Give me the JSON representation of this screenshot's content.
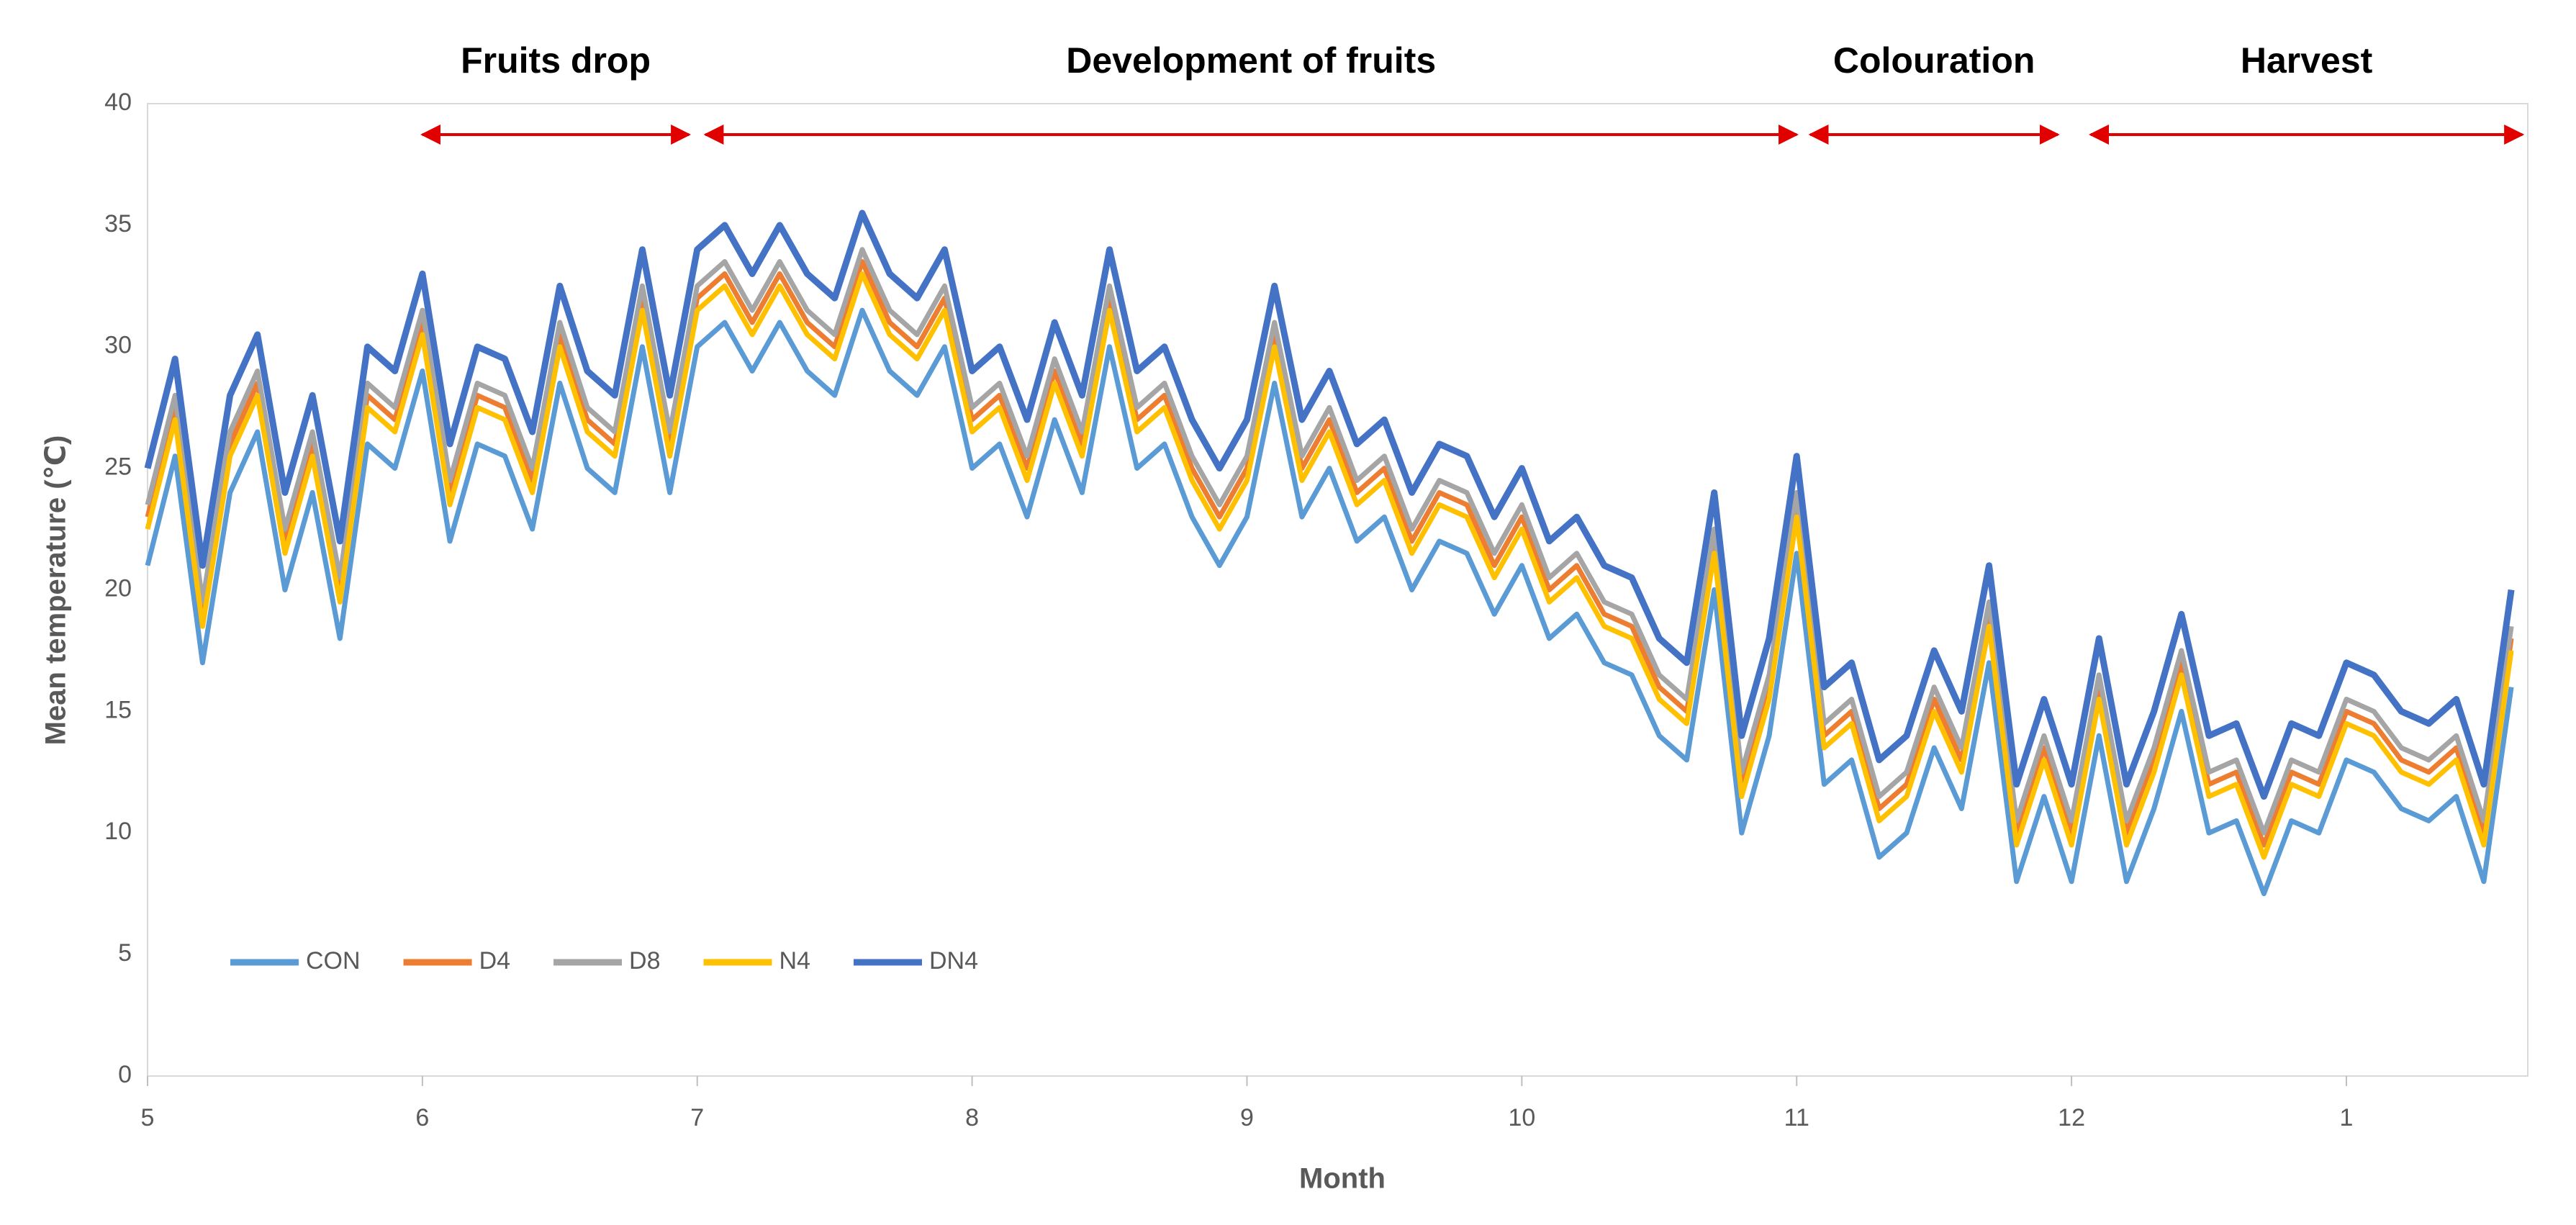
{
  "chart_data": {
    "type": "line",
    "y_label": "Mean temperature (℃)",
    "x_label": "Month",
    "xlim": [
      5,
      13.66
    ],
    "xticks": [
      5,
      6,
      7,
      8,
      9,
      10,
      11,
      12,
      {
        "value": 13,
        "label": "1"
      }
    ],
    "ylim": [
      0,
      40
    ],
    "yticks": [
      0,
      5,
      10,
      15,
      20,
      25,
      30,
      35,
      40
    ],
    "grid": false,
    "legend": "lower left",
    "annotations": [
      {
        "text": "Fruits drop",
        "x": [
          6,
          6.97
        ],
        "color": "#e00000"
      },
      {
        "text": "Development of fruits",
        "x": [
          7.03,
          11
        ],
        "color": "#e00000"
      },
      {
        "text": "Colouration",
        "x": [
          11.05,
          11.95
        ],
        "color": "#e00000"
      },
      {
        "text": "Harvest",
        "x": [
          12.07,
          13.64
        ],
        "color": "#e00000"
      }
    ],
    "x": [
      5.0,
      5.1,
      5.2,
      5.3,
      5.4,
      5.5,
      5.6,
      5.7,
      5.8,
      5.9,
      6.0,
      6.1,
      6.2,
      6.3,
      6.4,
      6.5,
      6.6,
      6.7,
      6.8,
      6.9,
      7.0,
      7.1,
      7.2,
      7.3,
      7.4,
      7.5,
      7.6,
      7.7,
      7.8,
      7.9,
      8.0,
      8.1,
      8.2,
      8.3,
      8.4,
      8.5,
      8.6,
      8.7,
      8.8,
      8.9,
      9.0,
      9.1,
      9.2,
      9.3,
      9.4,
      9.5,
      9.6,
      9.7,
      9.8,
      9.9,
      10.0,
      10.1,
      10.2,
      10.3,
      10.4,
      10.5,
      10.6,
      10.7,
      10.8,
      10.9,
      11.0,
      11.1,
      11.2,
      11.3,
      11.4,
      11.5,
      11.6,
      11.7,
      11.8,
      11.9,
      12.0,
      12.1,
      12.2,
      12.3,
      12.4,
      12.5,
      12.6,
      12.7,
      12.8,
      12.9,
      13.0,
      13.1,
      13.2,
      13.3,
      13.4,
      13.5,
      13.6
    ],
    "series": [
      {
        "name": "CON",
        "color": "#5b9bd5",
        "values": [
          21,
          25.5,
          17,
          24,
          26.5,
          20,
          24,
          18,
          26,
          25,
          29,
          22,
          26,
          25.5,
          22.5,
          28.5,
          25,
          24,
          30,
          24,
          30,
          31,
          29,
          31,
          29,
          28,
          31.5,
          29,
          28,
          30,
          25,
          26,
          23,
          27,
          24,
          30,
          25,
          26,
          23,
          21,
          23,
          28.5,
          23,
          25,
          22,
          23,
          20,
          22,
          21.5,
          19,
          21,
          18,
          19,
          17,
          16.5,
          14,
          13,
          20,
          10,
          14,
          21.5,
          12,
          13,
          9,
          10,
          13.5,
          11,
          17,
          8,
          11.5,
          8,
          14,
          8,
          11,
          15,
          10,
          10.5,
          7.5,
          10.5,
          10,
          13,
          12.5,
          11,
          10.5,
          11.5,
          8,
          16
        ]
      },
      {
        "name": "D4",
        "color": "#ed7d31",
        "values": [
          23,
          27.5,
          19,
          26,
          28.5,
          22,
          26,
          20,
          28,
          27,
          31,
          24,
          28,
          27.5,
          24.5,
          30.5,
          27,
          26,
          32,
          26,
          32,
          33,
          31,
          33,
          31,
          30,
          33.5,
          31,
          30,
          32,
          27,
          28,
          25,
          29,
          26,
          32,
          27,
          28,
          25,
          23,
          25,
          30.5,
          25,
          27,
          24,
          25,
          22,
          24,
          23.5,
          21,
          23,
          20,
          21,
          19,
          18.5,
          16,
          15,
          22,
          12,
          16,
          23.5,
          14,
          15,
          11,
          12,
          15.5,
          13,
          19,
          10,
          13.5,
          10,
          16,
          10,
          13,
          17,
          12,
          12.5,
          9.5,
          12.5,
          12,
          15,
          14.5,
          13,
          12.5,
          13.5,
          10,
          18
        ]
      },
      {
        "name": "D8",
        "color": "#a5a5a5",
        "values": [
          23.5,
          28,
          19.5,
          26.5,
          29,
          22.5,
          26.5,
          20.5,
          28.5,
          27.5,
          31.5,
          24.5,
          28.5,
          28,
          25,
          31,
          27.5,
          26.5,
          32.5,
          26.5,
          32.5,
          33.5,
          31.5,
          33.5,
          31.5,
          30.5,
          34,
          31.5,
          30.5,
          32.5,
          27.5,
          28.5,
          25.5,
          29.5,
          26.5,
          32.5,
          27.5,
          28.5,
          25.5,
          23.5,
          25.5,
          31,
          25.5,
          27.5,
          24.5,
          25.5,
          22.5,
          24.5,
          24,
          21.5,
          23.5,
          20.5,
          21.5,
          19.5,
          19,
          16.5,
          15.5,
          22.5,
          12.5,
          16.5,
          24,
          14.5,
          15.5,
          11.5,
          12.5,
          16,
          13.5,
          19.5,
          10.5,
          14,
          10.5,
          16.5,
          10.5,
          13.5,
          17.5,
          12.5,
          13,
          10,
          13,
          12.5,
          15.5,
          15,
          13.5,
          13,
          14,
          10.5,
          18.5
        ]
      },
      {
        "name": "N4",
        "color": "#ffc000",
        "values": [
          22.5,
          27,
          18.5,
          25.5,
          28,
          21.5,
          25.5,
          19.5,
          27.5,
          26.5,
          30.5,
          23.5,
          27.5,
          27,
          24,
          30,
          26.5,
          25.5,
          31.5,
          25.5,
          31.5,
          32.5,
          30.5,
          32.5,
          30.5,
          29.5,
          33,
          30.5,
          29.5,
          31.5,
          26.5,
          27.5,
          24.5,
          28.5,
          25.5,
          31.5,
          26.5,
          27.5,
          24.5,
          22.5,
          24.5,
          30,
          24.5,
          26.5,
          23.5,
          24.5,
          21.5,
          23.5,
          23,
          20.5,
          22.5,
          19.5,
          20.5,
          18.5,
          18,
          15.5,
          14.5,
          21.5,
          11.5,
          15.5,
          23,
          13.5,
          14.5,
          10.5,
          11.5,
          15,
          12.5,
          18.5,
          9.5,
          13,
          9.5,
          15.5,
          9.5,
          12.5,
          16.5,
          11.5,
          12,
          9,
          12,
          11.5,
          14.5,
          14,
          12.5,
          12,
          13,
          9.5,
          17.5
        ]
      },
      {
        "name": "DN4",
        "color": "#4472c4",
        "values": [
          25,
          29.5,
          21,
          28,
          30.5,
          24,
          28,
          22,
          30,
          29,
          33,
          26,
          30,
          29.5,
          26.5,
          32.5,
          29,
          28,
          34,
          28,
          34,
          35,
          33,
          35,
          33,
          32,
          35.5,
          33,
          32,
          34,
          29,
          30,
          27,
          31,
          28,
          34,
          29,
          30,
          27,
          25,
          27,
          32.5,
          27,
          29,
          26,
          27,
          24,
          26,
          25.5,
          23,
          25,
          22,
          23,
          21,
          20.5,
          18,
          17,
          24,
          14,
          18,
          25.5,
          16,
          17,
          13,
          14,
          17.5,
          15,
          21,
          12,
          15.5,
          12,
          18,
          12,
          15,
          19,
          14,
          14.5,
          11.5,
          14.5,
          14,
          17,
          16.5,
          15,
          14.5,
          15.5,
          12,
          20
        ]
      }
    ]
  }
}
